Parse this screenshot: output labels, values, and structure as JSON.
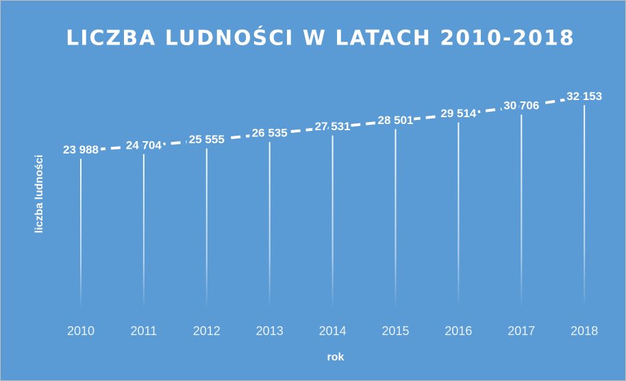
{
  "chart_data": {
    "type": "line",
    "title": "LICZBA LUDNOŚCI W LATACH 2010-2018",
    "x_label": "rok",
    "y_label": "liczba ludności",
    "categories": [
      "2010",
      "2011",
      "2012",
      "2013",
      "2014",
      "2015",
      "2016",
      "2017",
      "2018"
    ],
    "series": [
      {
        "name": "liczba ludności",
        "color": "#ffffff",
        "values": [
          23988,
          24704,
          25555,
          26535,
          27531,
          28501,
          29514,
          30706,
          32153
        ],
        "value_labels": [
          "23 988",
          "24 704",
          "25 555",
          "26 535",
          "27 531",
          "28 501",
          "29 514",
          "30 706",
          "32 153"
        ]
      }
    ],
    "ylim": [
      0,
      35000
    ],
    "drop_lines": true,
    "line_style": "dashed",
    "background": "#5b9bd5"
  }
}
